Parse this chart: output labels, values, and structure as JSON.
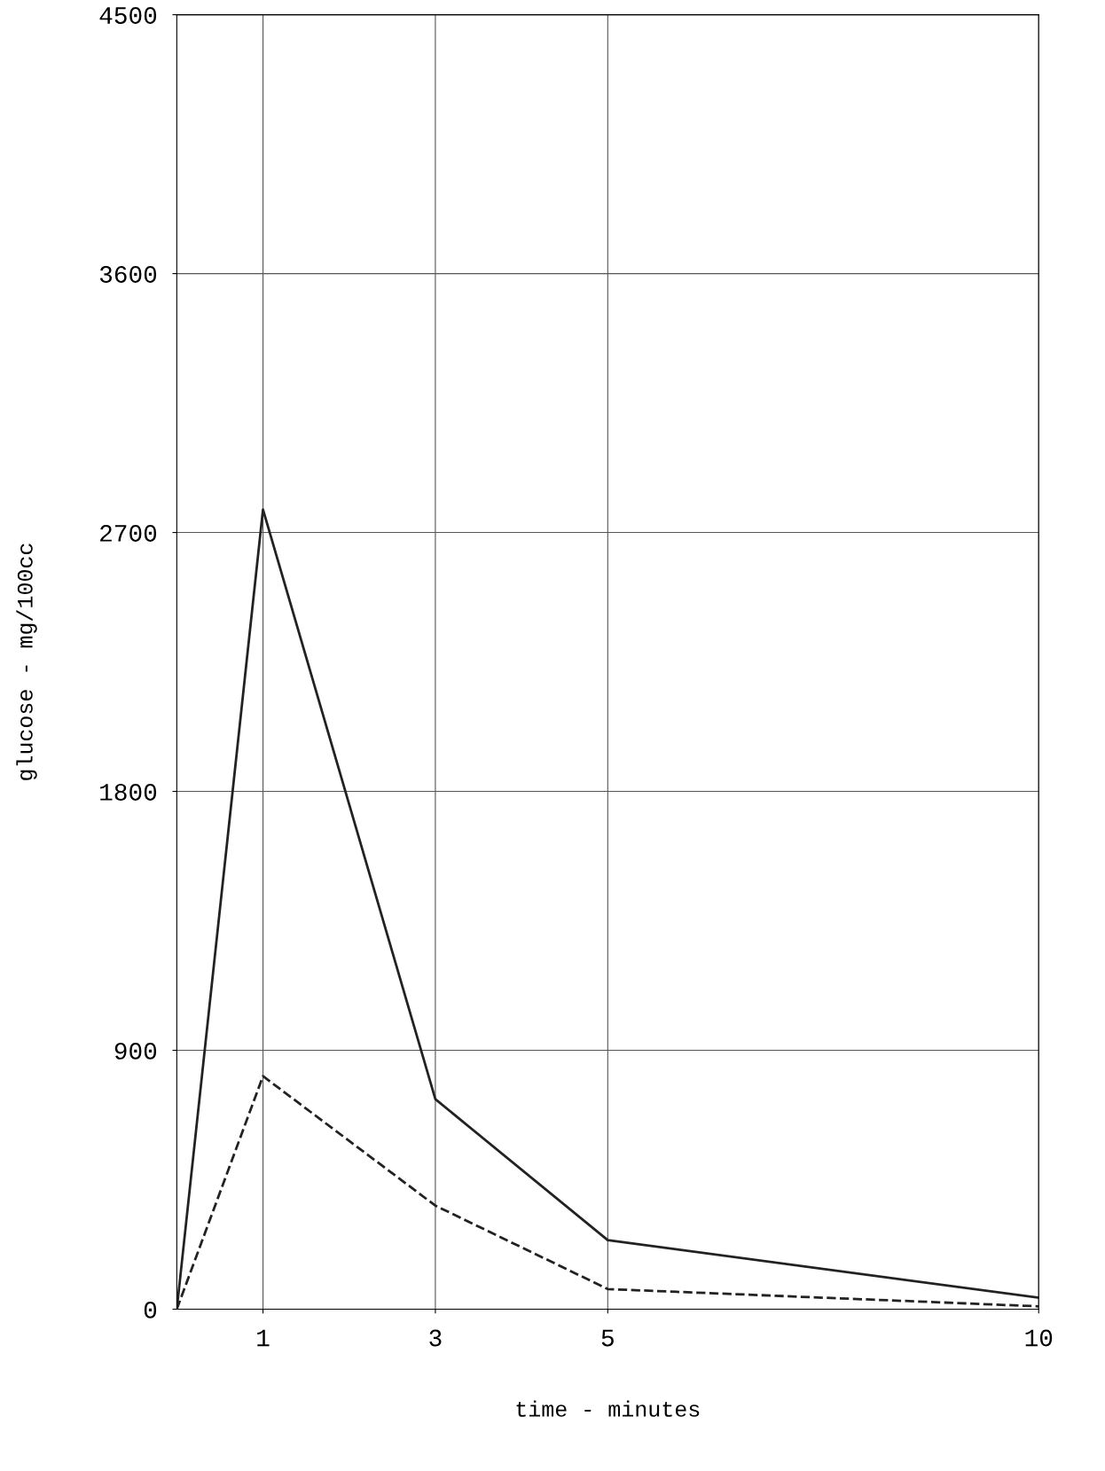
{
  "chart_data": {
    "type": "line",
    "xlabel": "time - minutes",
    "ylabel": "glucose - mg/100cc",
    "xlim": [
      0,
      10
    ],
    "ylim": [
      0,
      4500
    ],
    "xticks": [
      1,
      3,
      5,
      10
    ],
    "yticks": [
      0,
      900,
      1800,
      2700,
      3600,
      4500
    ],
    "grid": true,
    "marker": "none",
    "series": [
      {
        "color": "#222222",
        "line_style": "solid",
        "x": [
          0,
          1,
          3,
          5,
          10
        ],
        "values": [
          0,
          2780,
          730,
          240,
          40
        ]
      },
      {
        "color": "#222222",
        "line_style": "dashed",
        "x": [
          0,
          1,
          3,
          5,
          10
        ],
        "values": [
          0,
          810,
          360,
          70,
          10
        ]
      }
    ]
  }
}
